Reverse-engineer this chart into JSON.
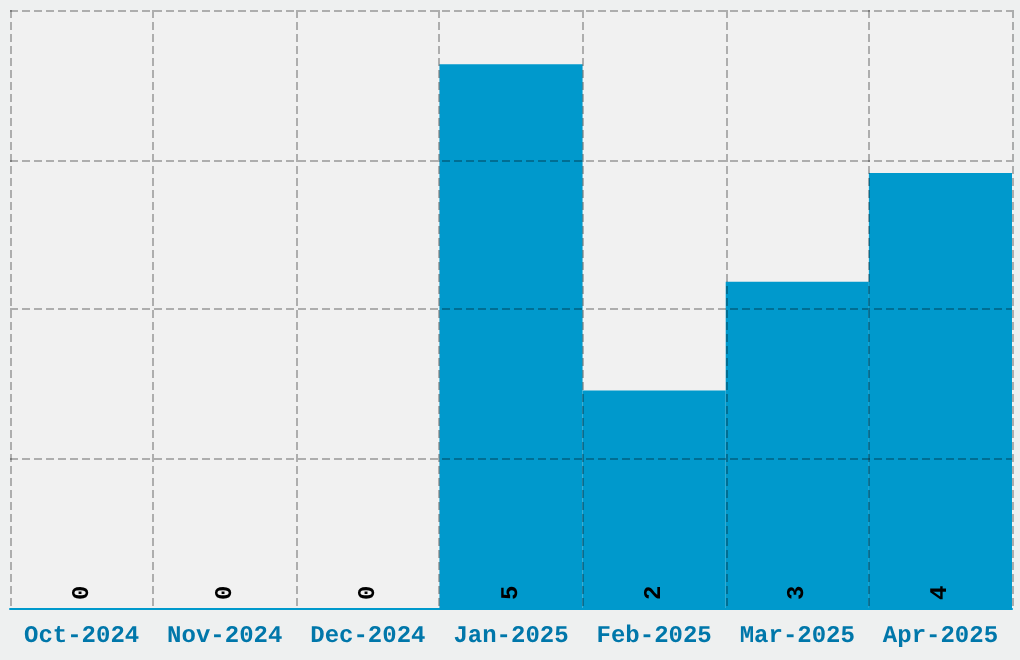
{
  "chart_data": {
    "type": "bar",
    "categories": [
      "Oct-2024",
      "Nov-2024",
      "Dec-2024",
      "Jan-2025",
      "Feb-2025",
      "Mar-2025",
      "Apr-2025"
    ],
    "values": [
      0,
      0,
      0,
      5,
      2,
      3,
      4
    ],
    "color": "#0099cc",
    "ylim": [
      0,
      5.5
    ],
    "yticks": [
      {
        "value": 0,
        "label": null
      },
      {
        "value": 1.375,
        "label": null
      },
      {
        "value": 2.75,
        "label": null
      },
      {
        "value": 4.125,
        "label": null
      },
      {
        "value": 5.5,
        "label": null
      }
    ],
    "tick_labels": "x",
    "grid": true,
    "data_labels": true
  }
}
